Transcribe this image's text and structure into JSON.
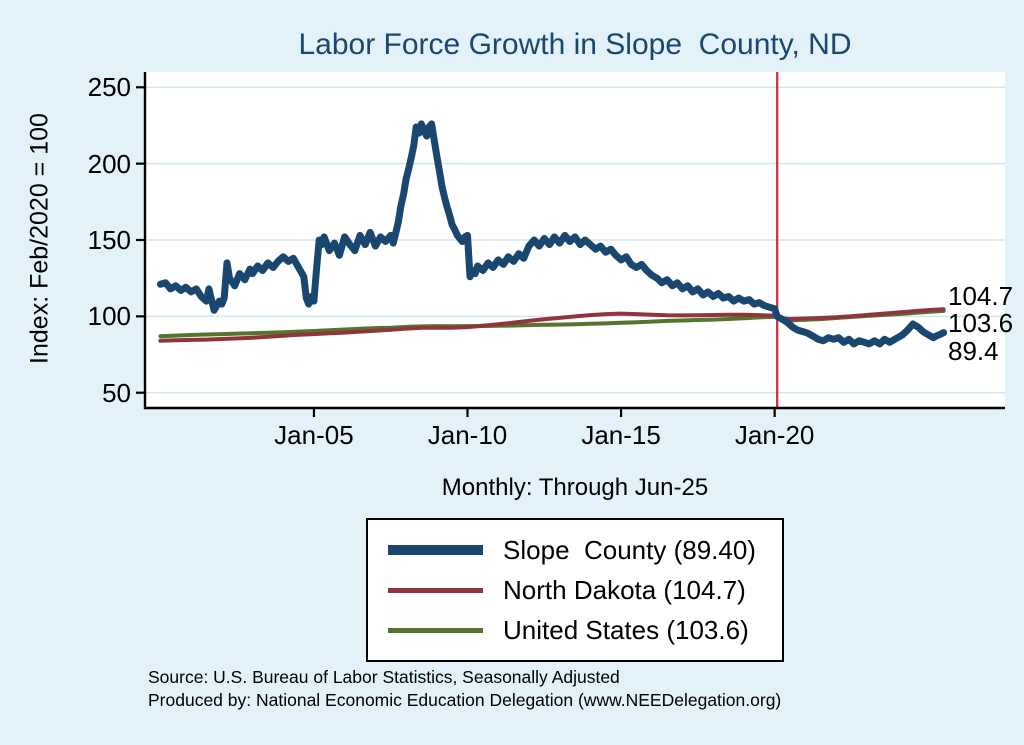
{
  "title": "Labor Force Growth in Slope  County, ND",
  "subtitle": "Monthly: Through Jun-25",
  "y_axis_title": "Index: Feb/2020 = 100",
  "source_note": "Source: U.S. Bureau of Labor Statistics, Seasonally Adjusted",
  "produced_note": "Produced by: National Economic Education Delegation (www.NEEDelegation.org)",
  "colors": {
    "background": "#e3f1f8",
    "plot_bg": "#ffffff",
    "grid": "#cfe6f3",
    "title": "#1a476f",
    "navy": "#1a476f",
    "maroon": "#90353b",
    "olive": "#55752f",
    "vline": "#cc2936",
    "text": "#000000"
  },
  "end_labels": [
    "104.7",
    "103.6",
    "89.4"
  ],
  "legend": {
    "entries": [
      {
        "label": "Slope  County (89.40)",
        "color": "#1a476f",
        "thickness": 10
      },
      {
        "label": "North Dakota (104.7)",
        "color": "#90353b",
        "thickness": 5
      },
      {
        "label": "United States (103.6)",
        "color": "#55752f",
        "thickness": 5
      }
    ]
  },
  "chart_data": {
    "type": "line",
    "title": "Labor Force Growth in Slope  County, ND",
    "subtitle": "Monthly: Through Jun-25",
    "ylabel": "Index: Feb/2020 = 100",
    "xlim": [
      1999.5,
      2027.5
    ],
    "ylim": [
      40,
      260
    ],
    "yticks": [
      50,
      100,
      150,
      200,
      250
    ],
    "xticks": [
      {
        "x": 2005,
        "label": "Jan-05"
      },
      {
        "x": 2010,
        "label": "Jan-10"
      },
      {
        "x": 2015,
        "label": "Jan-15"
      },
      {
        "x": 2020,
        "label": "Jan-20"
      }
    ],
    "grid": "horizontal",
    "legend_position": "bottom",
    "vline": {
      "x": 2020.083,
      "color": "#cc2936"
    },
    "series": [
      {
        "name": "Slope County",
        "final_value": 89.4,
        "color": "#1a476f",
        "width": 7,
        "x": [
          2000.0,
          2000.17,
          2000.33,
          2000.5,
          2000.67,
          2000.83,
          2001.0,
          2001.17,
          2001.33,
          2001.5,
          2001.58,
          2001.75,
          2001.92,
          2002.0,
          2002.08,
          2002.17,
          2002.25,
          2002.42,
          2002.58,
          2002.75,
          2002.92,
          2003.0,
          2003.17,
          2003.33,
          2003.5,
          2003.67,
          2003.83,
          2004.0,
          2004.17,
          2004.33,
          2004.5,
          2004.67,
          2004.75,
          2004.83,
          2004.92,
          2005.0,
          2005.08,
          2005.17,
          2005.25,
          2005.33,
          2005.5,
          2005.67,
          2005.83,
          2006.0,
          2006.17,
          2006.33,
          2006.5,
          2006.67,
          2006.83,
          2007.0,
          2007.17,
          2007.33,
          2007.5,
          2007.58,
          2007.67,
          2007.75,
          2007.83,
          2007.92,
          2008.0,
          2008.08,
          2008.17,
          2008.25,
          2008.33,
          2008.42,
          2008.5,
          2008.58,
          2008.67,
          2008.75,
          2008.83,
          2008.92,
          2009.0,
          2009.08,
          2009.17,
          2009.25,
          2009.33,
          2009.42,
          2009.5,
          2009.58,
          2009.67,
          2009.75,
          2009.83,
          2009.92,
          2010.0,
          2010.08,
          2010.17,
          2010.25,
          2010.33,
          2010.5,
          2010.67,
          2010.83,
          2011.0,
          2011.17,
          2011.33,
          2011.5,
          2011.67,
          2011.83,
          2012.0,
          2012.17,
          2012.33,
          2012.5,
          2012.67,
          2012.83,
          2013.0,
          2013.17,
          2013.33,
          2013.5,
          2013.67,
          2013.83,
          2014.0,
          2014.17,
          2014.33,
          2014.5,
          2014.67,
          2014.83,
          2015.0,
          2015.17,
          2015.33,
          2015.5,
          2015.67,
          2015.83,
          2016.0,
          2016.17,
          2016.33,
          2016.5,
          2016.67,
          2016.83,
          2017.0,
          2017.17,
          2017.33,
          2017.5,
          2017.67,
          2017.83,
          2018.0,
          2018.17,
          2018.33,
          2018.5,
          2018.67,
          2018.83,
          2019.0,
          2019.17,
          2019.33,
          2019.5,
          2019.67,
          2019.83,
          2020.0,
          2020.08,
          2020.25,
          2020.42,
          2020.58,
          2020.75,
          2020.92,
          2021.08,
          2021.25,
          2021.42,
          2021.58,
          2021.75,
          2021.92,
          2022.08,
          2022.25,
          2022.42,
          2022.58,
          2022.75,
          2022.92,
          2023.08,
          2023.25,
          2023.42,
          2023.58,
          2023.75,
          2023.83,
          2024.0,
          2024.17,
          2024.33,
          2024.5,
          2024.67,
          2024.83,
          2025.0,
          2025.17,
          2025.25,
          2025.42,
          2025.5
        ],
        "values": [
          121,
          122,
          118,
          120,
          117,
          119,
          116,
          118,
          113,
          110,
          118,
          104,
          110,
          108,
          112,
          135,
          125,
          120,
          128,
          124,
          131,
          128,
          133,
          130,
          135,
          132,
          136,
          139,
          136,
          138,
          132,
          126,
          112,
          108,
          113,
          110,
          130,
          150,
          147,
          152,
          143,
          148,
          140,
          152,
          147,
          143,
          153,
          147,
          155,
          146,
          152,
          149,
          153,
          148,
          155,
          162,
          172,
          180,
          190,
          196,
          204,
          212,
          224,
          220,
          226,
          222,
          218,
          224,
          226,
          215,
          205,
          196,
          185,
          178,
          172,
          166,
          160,
          157,
          153,
          151,
          149,
          152,
          153,
          126,
          130,
          128,
          133,
          130,
          135,
          132,
          137,
          134,
          139,
          136,
          141,
          138,
          146,
          150,
          146,
          151,
          147,
          152,
          148,
          153,
          149,
          152,
          147,
          150,
          147,
          144,
          146,
          142,
          144,
          140,
          137,
          139,
          134,
          132,
          134,
          130,
          127,
          125,
          122,
          124,
          120,
          122,
          118,
          120,
          116,
          118,
          114,
          116,
          113,
          115,
          112,
          113,
          110,
          112,
          110,
          111,
          108,
          109,
          107,
          106,
          105,
          100,
          98,
          96,
          93,
          91,
          90,
          89,
          87,
          85,
          84,
          86,
          85,
          86,
          83,
          85,
          82,
          84,
          83,
          82,
          84,
          82,
          85,
          83,
          84,
          86,
          88,
          91,
          95,
          93,
          90,
          88,
          86,
          87,
          88.5,
          89.4
        ]
      },
      {
        "name": "North Dakota",
        "final_value": 104.7,
        "color": "#90353b",
        "width": 4,
        "x": [
          2000,
          2000.5,
          2001,
          2001.5,
          2002,
          2002.5,
          2003,
          2003.5,
          2004,
          2004.5,
          2005,
          2005.5,
          2006,
          2006.5,
          2007,
          2007.5,
          2008,
          2008.5,
          2009,
          2009.5,
          2010,
          2010.5,
          2011,
          2011.5,
          2012,
          2012.5,
          2013,
          2013.5,
          2014,
          2014.5,
          2015,
          2015.5,
          2016,
          2016.5,
          2017,
          2017.5,
          2018,
          2018.5,
          2019,
          2019.5,
          2020,
          2020.08,
          2020.25,
          2020.5,
          2020.75,
          2021,
          2021.5,
          2022,
          2022.5,
          2023,
          2023.5,
          2024,
          2024.5,
          2025,
          2025.5
        ],
        "values": [
          84,
          84.3,
          84.6,
          84.8,
          85.2,
          85.6,
          86,
          86.6,
          87.3,
          87.9,
          88.4,
          88.9,
          89.4,
          90,
          90.6,
          91.3,
          92,
          92.5,
          92.6,
          92.5,
          93,
          93.8,
          94.8,
          95.9,
          97,
          98.1,
          99,
          100,
          100.8,
          101.5,
          101.8,
          101.5,
          101,
          100.7,
          100.6,
          100.7,
          100.9,
          101,
          101,
          100.8,
          100.4,
          100,
          98.8,
          98.3,
          98.4,
          98.6,
          98.9,
          99.4,
          100.1,
          100.9,
          101.7,
          102.5,
          103.3,
          104.1,
          104.7
        ]
      },
      {
        "name": "United States",
        "final_value": 103.6,
        "color": "#55752f",
        "width": 4,
        "x": [
          2000,
          2000.5,
          2001,
          2001.5,
          2002,
          2002.5,
          2003,
          2003.5,
          2004,
          2004.5,
          2005,
          2005.5,
          2006,
          2006.5,
          2007,
          2007.5,
          2008,
          2008.5,
          2009,
          2009.5,
          2010,
          2010.5,
          2011,
          2011.5,
          2012,
          2012.5,
          2013,
          2013.5,
          2014,
          2014.5,
          2015,
          2015.5,
          2016,
          2016.5,
          2017,
          2017.5,
          2018,
          2018.5,
          2019,
          2019.5,
          2020,
          2020.08,
          2020.25,
          2020.5,
          2020.75,
          2021,
          2021.5,
          2022,
          2022.5,
          2023,
          2023.5,
          2024,
          2024.5,
          2025,
          2025.5
        ],
        "values": [
          87,
          87.4,
          87.8,
          88.1,
          88.4,
          88.7,
          89,
          89.3,
          89.6,
          90,
          90.4,
          90.9,
          91.4,
          91.9,
          92.3,
          92.6,
          93.1,
          93.4,
          93.6,
          93.5,
          93.6,
          93.7,
          93.8,
          94,
          94.3,
          94.5,
          94.6,
          94.8,
          95.1,
          95.4,
          95.8,
          96.1,
          96.6,
          97,
          97.3,
          97.6,
          97.9,
          98.3,
          98.8,
          99.3,
          99.8,
          100,
          96.9,
          97.3,
          97.6,
          97.8,
          98.2,
          98.9,
          99.6,
          100.3,
          100.9,
          101.5,
          102.2,
          102.9,
          103.6
        ]
      }
    ]
  }
}
